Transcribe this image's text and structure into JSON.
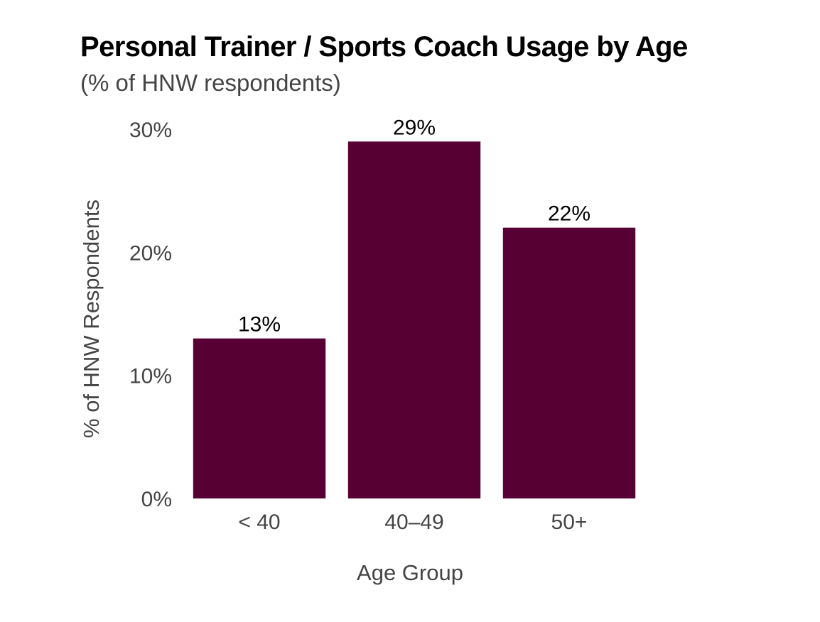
{
  "chart_data": {
    "type": "bar",
    "title": "Personal Trainer / Sports Coach Usage by Age",
    "subtitle": "(% of HNW respondents)",
    "xlabel": "Age Group",
    "ylabel": "% of HNW Respondents",
    "categories": [
      "< 40",
      "40–49",
      "50+"
    ],
    "values": [
      13,
      29,
      22
    ],
    "data_labels": [
      "13%",
      "29%",
      "22%"
    ],
    "y_ticks": [
      0,
      10,
      20,
      30
    ],
    "y_tick_labels": [
      "0%",
      "10%",
      "20%",
      "30%"
    ],
    "ylim": [
      0,
      30
    ],
    "grid": false,
    "legend": "none",
    "bar_color": "#570033"
  }
}
